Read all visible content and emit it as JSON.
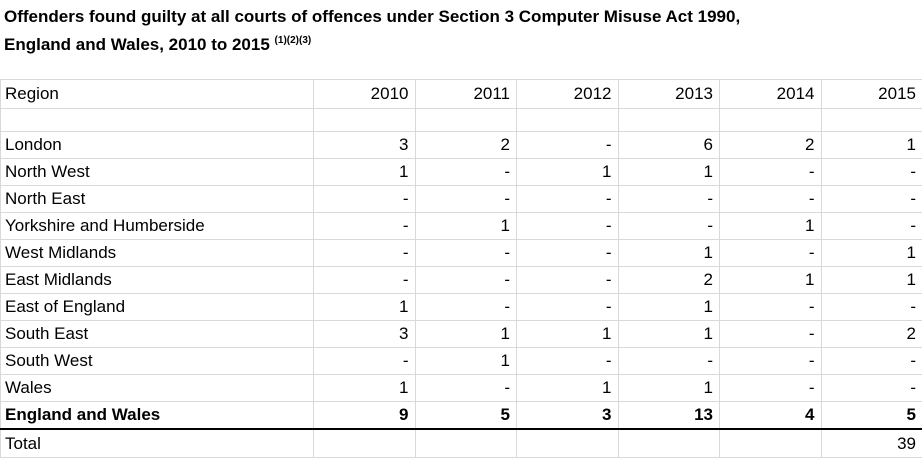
{
  "title": {
    "line1": "Offenders found guilty at all courts of offences under Section 3 Computer Misuse Act 1990,",
    "line2": "England and Wales, 2010 to 2015",
    "footnote_marks": "(1)(2)(3)"
  },
  "table": {
    "header": {
      "label": "Region",
      "years": [
        "2010",
        "2011",
        "2012",
        "2013",
        "2014",
        "2015"
      ]
    },
    "rows": [
      {
        "region": "London",
        "values": [
          "3",
          "2",
          "-",
          "6",
          "2",
          "1"
        ]
      },
      {
        "region": "North West",
        "values": [
          "1",
          "-",
          "1",
          "1",
          "-",
          "-"
        ]
      },
      {
        "region": "North East",
        "values": [
          "-",
          "-",
          "-",
          "-",
          "-",
          "-"
        ]
      },
      {
        "region": "Yorkshire and Humberside",
        "values": [
          "-",
          "1",
          "-",
          "-",
          "1",
          "-"
        ]
      },
      {
        "region": "West Midlands",
        "values": [
          "-",
          "-",
          "-",
          "1",
          "-",
          "1"
        ]
      },
      {
        "region": "East Midlands",
        "values": [
          "-",
          "-",
          "-",
          "2",
          "1",
          "1"
        ]
      },
      {
        "region": "East of England",
        "values": [
          "1",
          "-",
          "-",
          "1",
          "-",
          "-"
        ]
      },
      {
        "region": "South East",
        "values": [
          "3",
          "1",
          "1",
          "1",
          "-",
          "2"
        ]
      },
      {
        "region": "South West",
        "values": [
          "-",
          "1",
          "-",
          "-",
          "-",
          "-"
        ]
      },
      {
        "region": "Wales",
        "values": [
          "1",
          "-",
          "1",
          "1",
          "-",
          "-"
        ]
      }
    ],
    "england_and_wales": {
      "label": "England and Wales",
      "values": [
        "9",
        "5",
        "3",
        "13",
        "4",
        "5"
      ]
    },
    "total": {
      "label": "Total",
      "value": "39"
    }
  }
}
